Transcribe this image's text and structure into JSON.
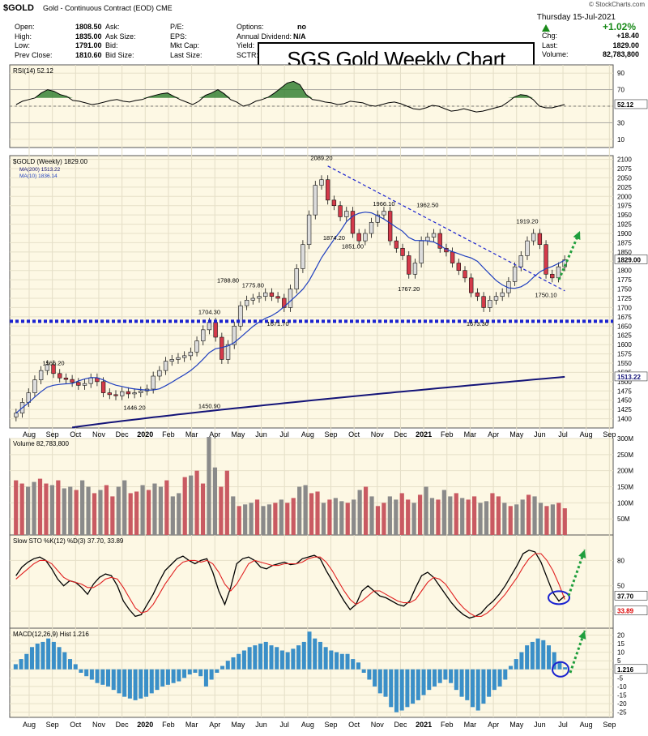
{
  "header": {
    "symbol": "$GOLD",
    "name": "Gold - Continuous Contract (EOD)",
    "exchange": "CME",
    "watermark": "© StockCharts.com",
    "date": "Thursday 15-Jul-2021",
    "change_pct": "+1.02%",
    "title_box": "SGS Gold Weekly Chart",
    "col1": [
      [
        "Open:",
        "1808.50"
      ],
      [
        "High:",
        "1835.00"
      ],
      [
        "Low:",
        "1791.00"
      ],
      [
        "Prev Close:",
        "1810.60"
      ]
    ],
    "col2": [
      "Ask:",
      "Ask Size:",
      "Bid:",
      "Bid Size:"
    ],
    "col3": [
      "P/E:",
      "EPS:",
      "Mkt Cap:",
      "Last Size:"
    ],
    "col4": [
      [
        "Options:",
        "no"
      ],
      [
        "Annual Dividend:",
        "N/A"
      ],
      [
        "Yield:",
        ""
      ],
      [
        "SCTR:",
        ""
      ]
    ],
    "col5": [
      [
        "Chg:",
        "+18.40"
      ],
      [
        "Last:",
        "1829.00"
      ],
      [
        "Volume:",
        "82,783,800"
      ]
    ]
  },
  "months": [
    "Aug",
    "Sep",
    "Oct",
    "Nov",
    "Dec",
    "2020",
    "Feb",
    "Mar",
    "Apr",
    "May",
    "Jun",
    "Jul",
    "Aug",
    "Sep",
    "Oct",
    "Nov",
    "Dec",
    "2021",
    "Feb",
    "Mar",
    "Apr",
    "May",
    "Jun",
    "Jul",
    "Aug",
    "Sep"
  ],
  "colors": {
    "up": "#dcdcdc",
    "down": "#d43a4a",
    "ma10": "#1f3fbf",
    "ma200": "#141478",
    "support": "#1a22d0",
    "trend": "#1a22d0",
    "arrow": "#1f9e3c",
    "panel": "#fdf8e4",
    "axis": "#333333",
    "rsi": "#2a7a2a",
    "stok": "#000000",
    "stod": "#e02020",
    "hist": "#3a8fc8"
  },
  "chart_data": [
    {
      "type": "line",
      "title": "RSI(14) 52.12",
      "last": "52.12",
      "y_ticks": [
        10,
        30,
        50,
        70,
        90
      ],
      "ylim": [
        0,
        100
      ],
      "values": [
        52,
        56,
        58,
        60,
        66,
        70,
        68,
        64,
        62,
        57,
        56,
        54,
        52,
        53,
        55,
        57,
        58,
        56,
        55,
        57,
        58,
        61,
        63,
        65,
        66,
        62,
        58,
        55,
        52,
        56,
        63,
        66,
        70,
        65,
        58,
        55,
        50,
        52,
        56,
        58,
        61,
        66,
        72,
        78,
        80,
        76,
        64,
        58,
        57,
        55,
        54,
        52,
        53,
        56,
        55,
        54,
        51,
        50,
        52,
        54,
        55,
        53,
        50,
        47,
        46,
        48,
        51,
        50,
        47,
        44,
        45,
        47,
        45,
        43,
        44,
        46,
        48,
        50,
        55,
        61,
        64,
        63,
        58,
        50,
        48,
        48,
        50,
        52
      ]
    },
    {
      "type": "candlestick",
      "title": "$GOLD (Weekly) 1829.00",
      "legend": [
        "MA(200) 1513.22",
        "MA(10) 1836.14"
      ],
      "ylim": [
        1375,
        2110
      ],
      "y_ticks": [
        1400,
        1425,
        1450,
        1475,
        1500,
        1525,
        1550,
        1575,
        1600,
        1625,
        1650,
        1675,
        1700,
        1725,
        1750,
        1775,
        1800,
        1825,
        1850,
        1875,
        1900,
        1925,
        1950,
        1975,
        2000,
        2025,
        2050,
        2075,
        2100
      ],
      "last_price": "1829.00",
      "ma200_last": "1513.22",
      "support_level": 1663,
      "trendline": {
        "from": [
          2,
          2082
        ],
        "to": [
          8,
          1745
        ]
      },
      "annotations": [
        {
          "label": "1566.20",
          "i": 6,
          "v": 1566
        },
        {
          "label": "1446.20",
          "i": 19,
          "v": 1446
        },
        {
          "label": "1450.90",
          "i": 31,
          "v": 1451
        },
        {
          "label": "1704.30",
          "i": 31,
          "v": 1704
        },
        {
          "label": "1788.80",
          "i": 34,
          "v": 1789
        },
        {
          "label": "1775.80",
          "i": 38,
          "v": 1776
        },
        {
          "label": "1671.70",
          "i": 42,
          "v": 1672
        },
        {
          "label": "2089.20",
          "i": 49,
          "v": 2089
        },
        {
          "label": "1874.20",
          "i": 51,
          "v": 1874
        },
        {
          "label": "1851.00",
          "i": 54,
          "v": 1851
        },
        {
          "label": "1966.10",
          "i": 59,
          "v": 1966
        },
        {
          "label": "1767.20",
          "i": 63,
          "v": 1767
        },
        {
          "label": "1962.50",
          "i": 66,
          "v": 1962
        },
        {
          "label": "1673.30",
          "i": 74,
          "v": 1673
        },
        {
          "label": "1919.20",
          "i": 82,
          "v": 1919
        },
        {
          "label": "1750.10",
          "i": 85,
          "v": 1750
        }
      ],
      "close": [
        1415,
        1444,
        1470,
        1505,
        1530,
        1546,
        1522,
        1510,
        1506,
        1498,
        1490,
        1495,
        1510,
        1500,
        1470,
        1465,
        1462,
        1473,
        1467,
        1470,
        1475,
        1480,
        1515,
        1530,
        1555,
        1560,
        1565,
        1570,
        1580,
        1610,
        1640,
        1660,
        1620,
        1560,
        1600,
        1650,
        1705,
        1720,
        1725,
        1730,
        1740,
        1730,
        1725,
        1700,
        1750,
        1805,
        1870,
        1950,
        2030,
        2045,
        1990,
        1975,
        1945,
        1960,
        1900,
        1880,
        1900,
        1930,
        1950,
        1960,
        1880,
        1860,
        1840,
        1790,
        1820,
        1880,
        1890,
        1900,
        1860,
        1850,
        1820,
        1800,
        1780,
        1740,
        1730,
        1700,
        1720,
        1730,
        1740,
        1770,
        1810,
        1840,
        1880,
        1900,
        1870,
        1790,
        1780,
        1810,
        1829
      ]
    },
    {
      "type": "bar",
      "title": "Volume 82,783,800",
      "ylim": [
        0,
        300
      ],
      "y_ticks": [
        50,
        100,
        150,
        200,
        250,
        300
      ],
      "y_tick_labels": [
        "50M",
        "100M",
        "150M",
        "200M",
        "250M",
        "300M"
      ],
      "last": "82783800",
      "values": [
        170,
        160,
        150,
        165,
        175,
        160,
        155,
        170,
        145,
        150,
        140,
        170,
        150,
        130,
        140,
        155,
        120,
        150,
        170,
        130,
        135,
        155,
        140,
        160,
        150,
        170,
        120,
        130,
        180,
        185,
        200,
        160,
        305,
        210,
        150,
        200,
        120,
        90,
        95,
        100,
        110,
        90,
        95,
        100,
        110,
        100,
        115,
        150,
        155,
        130,
        135,
        100,
        110,
        115,
        105,
        100,
        110,
        140,
        150,
        120,
        90,
        100,
        120,
        110,
        130,
        110,
        100,
        125,
        150,
        115,
        110,
        140,
        120,
        130,
        115,
        110,
        120,
        100,
        105,
        130,
        120,
        100,
        90,
        95,
        110,
        125,
        120,
        100,
        90,
        95,
        100,
        83
      ]
    },
    {
      "type": "line",
      "title": "Slow STO %K(12) %D(3) 37.70, 33.89",
      "ylim": [
        0,
        110
      ],
      "y_ticks": [
        20,
        50,
        80
      ],
      "k_last": "37.70",
      "d_last": "33.89",
      "series": [
        {
          "name": "%K",
          "values": [
            62,
            72,
            78,
            82,
            84,
            80,
            70,
            58,
            50,
            56,
            54,
            48,
            40,
            52,
            60,
            64,
            62,
            50,
            32,
            22,
            14,
            16,
            28,
            40,
            55,
            68,
            75,
            82,
            85,
            80,
            76,
            80,
            82,
            66,
            44,
            28,
            48,
            76,
            82,
            84,
            80,
            72,
            70,
            74,
            76,
            78,
            75,
            76,
            82,
            84,
            86,
            82,
            68,
            56,
            44,
            32,
            22,
            28,
            44,
            50,
            44,
            38,
            36,
            32,
            28,
            26,
            32,
            48,
            62,
            66,
            60,
            50,
            40,
            30,
            22,
            16,
            12,
            14,
            18,
            26,
            32,
            40,
            50,
            62,
            74,
            88,
            92,
            90,
            78,
            60,
            42,
            32,
            38
          ]
        },
        {
          "name": "%D",
          "values": [
            58,
            64,
            70,
            76,
            80,
            80,
            76,
            68,
            60,
            56,
            54,
            52,
            48,
            48,
            52,
            58,
            60,
            58,
            48,
            36,
            24,
            18,
            20,
            28,
            40,
            52,
            62,
            72,
            78,
            80,
            80,
            78,
            80,
            76,
            66,
            52,
            44,
            52,
            64,
            76,
            80,
            78,
            76,
            74,
            74,
            76,
            76,
            76,
            78,
            82,
            84,
            84,
            78,
            68,
            56,
            44,
            34,
            28,
            32,
            38,
            44,
            44,
            40,
            36,
            32,
            30,
            30,
            34,
            44,
            54,
            60,
            58,
            52,
            42,
            32,
            24,
            18,
            14,
            14,
            18,
            24,
            32,
            40,
            50,
            60,
            72,
            82,
            88,
            88,
            80,
            68,
            52,
            34
          ]
        }
      ]
    },
    {
      "type": "bar",
      "title": "MACD(12,26,9) Hist 1.216",
      "ylim": [
        -28,
        24
      ],
      "y_ticks": [
        -25,
        -20,
        -15,
        -10,
        -5,
        0,
        5,
        10,
        15,
        20
      ],
      "last": "1.216",
      "values": [
        3,
        6,
        9,
        13,
        15,
        16,
        18,
        16,
        13,
        10,
        6,
        3,
        -2,
        -4,
        -6,
        -8,
        -9,
        -10,
        -12,
        -14,
        -16,
        -17,
        -18,
        -17,
        -16,
        -14,
        -12,
        -10,
        -9,
        -8,
        -7,
        -5,
        -3,
        -2,
        -4,
        -10,
        -6,
        -2,
        2,
        5,
        7,
        9,
        11,
        13,
        14,
        15,
        16,
        14,
        13,
        11,
        10,
        12,
        14,
        16,
        22,
        18,
        16,
        13,
        11,
        10,
        9,
        9,
        6,
        4,
        -2,
        -6,
        -10,
        -14,
        -16,
        -22,
        -25,
        -24,
        -22,
        -20,
        -18,
        -15,
        -12,
        -10,
        -8,
        -6,
        -8,
        -12,
        -16,
        -18,
        -22,
        -24,
        -20,
        -16,
        -12,
        -10,
        -6,
        2,
        6,
        10,
        14,
        16,
        18,
        17,
        14,
        10,
        4,
        1.2
      ]
    }
  ]
}
